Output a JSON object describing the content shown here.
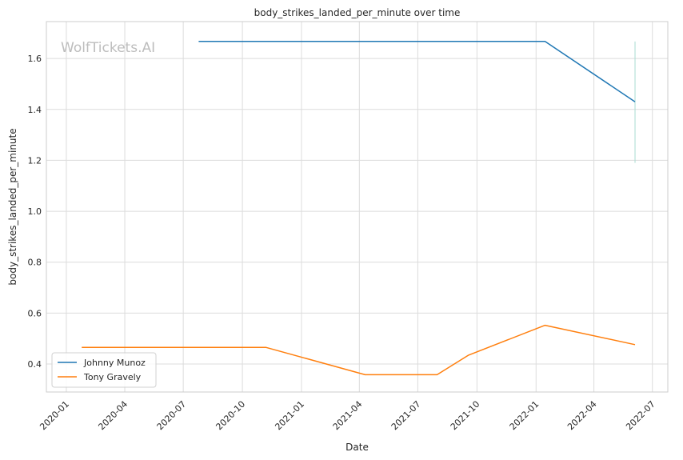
{
  "chart_data": {
    "type": "line",
    "title": "body_strikes_landed_per_minute over time",
    "xlabel": "Date",
    "ylabel": "body_strikes_landed_per_minute",
    "watermark": "WolfTickets.AI",
    "x_ticks": [
      "2020-01",
      "2020-04",
      "2020-07",
      "2020-10",
      "2021-01",
      "2021-04",
      "2021-07",
      "2021-10",
      "2022-01",
      "2022-04",
      "2022-07"
    ],
    "y_ticks": [
      "0.4",
      "0.6",
      "0.8",
      "1.0",
      "1.2",
      "1.4",
      "1.6"
    ],
    "xlim": [
      "2019-12-01",
      "2022-07-25"
    ],
    "ylim": [
      0.29,
      1.745
    ],
    "grid": true,
    "legend_position": "lower-left",
    "series": [
      {
        "name": "Johnny Munoz",
        "color": "#1f77b4",
        "points": [
          {
            "x": "2020-07-25",
            "y": 1.667
          },
          {
            "x": "2022-01-15",
            "y": 1.667
          },
          {
            "x": "2022-06-04",
            "y": 1.43
          }
        ]
      },
      {
        "name": "Tony Gravely",
        "color": "#ff7f0e",
        "points": [
          {
            "x": "2020-01-25",
            "y": 0.465
          },
          {
            "x": "2020-11-07",
            "y": 0.465
          },
          {
            "x": "2021-04-10",
            "y": 0.358
          },
          {
            "x": "2021-07-31",
            "y": 0.358
          },
          {
            "x": "2021-09-18",
            "y": 0.435
          },
          {
            "x": "2022-01-15",
            "y": 0.552
          },
          {
            "x": "2022-06-04",
            "y": 0.476
          }
        ]
      }
    ],
    "error_bar": {
      "x": "2022-06-04",
      "y_low": 1.19,
      "y_high": 1.667,
      "color": "#a8dcd2"
    }
  }
}
